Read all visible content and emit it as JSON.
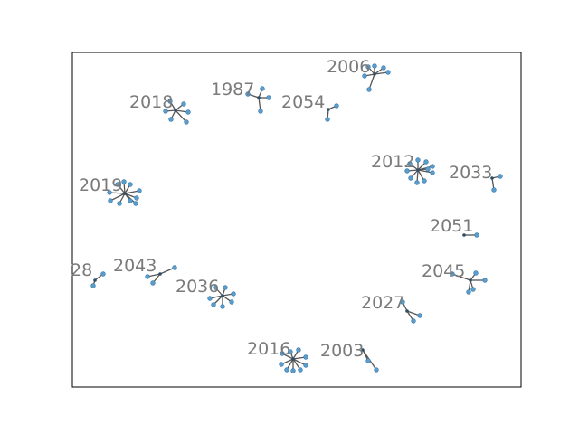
{
  "diagram": {
    "type": "network-clusters",
    "colors": {
      "node": "#5b9cc9",
      "node_stroke": "#3a7cb0",
      "hub": "#2f4f66",
      "edge": "#555555",
      "label": "#7a7a7a",
      "frame": "#000000"
    },
    "clusters": [
      {
        "label": "2006",
        "leaves": 6
      },
      {
        "label": "1987",
        "leaves": 4
      },
      {
        "label": "2054",
        "leaves": 2
      },
      {
        "label": "2018",
        "leaves": 6
      },
      {
        "label": "2012",
        "leaves": 10
      },
      {
        "label": "2033",
        "leaves": 2
      },
      {
        "label": "2019",
        "leaves": 10
      },
      {
        "label": "2051",
        "leaves": 1
      },
      {
        "label": "28",
        "leaves": 2
      },
      {
        "label": "2043",
        "leaves": 3
      },
      {
        "label": "2036",
        "leaves": 7
      },
      {
        "label": "2045",
        "leaves": 5
      },
      {
        "label": "2027",
        "leaves": 3
      },
      {
        "label": "2016",
        "leaves": 9
      },
      {
        "label": "2003",
        "leaves": 2
      }
    ]
  }
}
